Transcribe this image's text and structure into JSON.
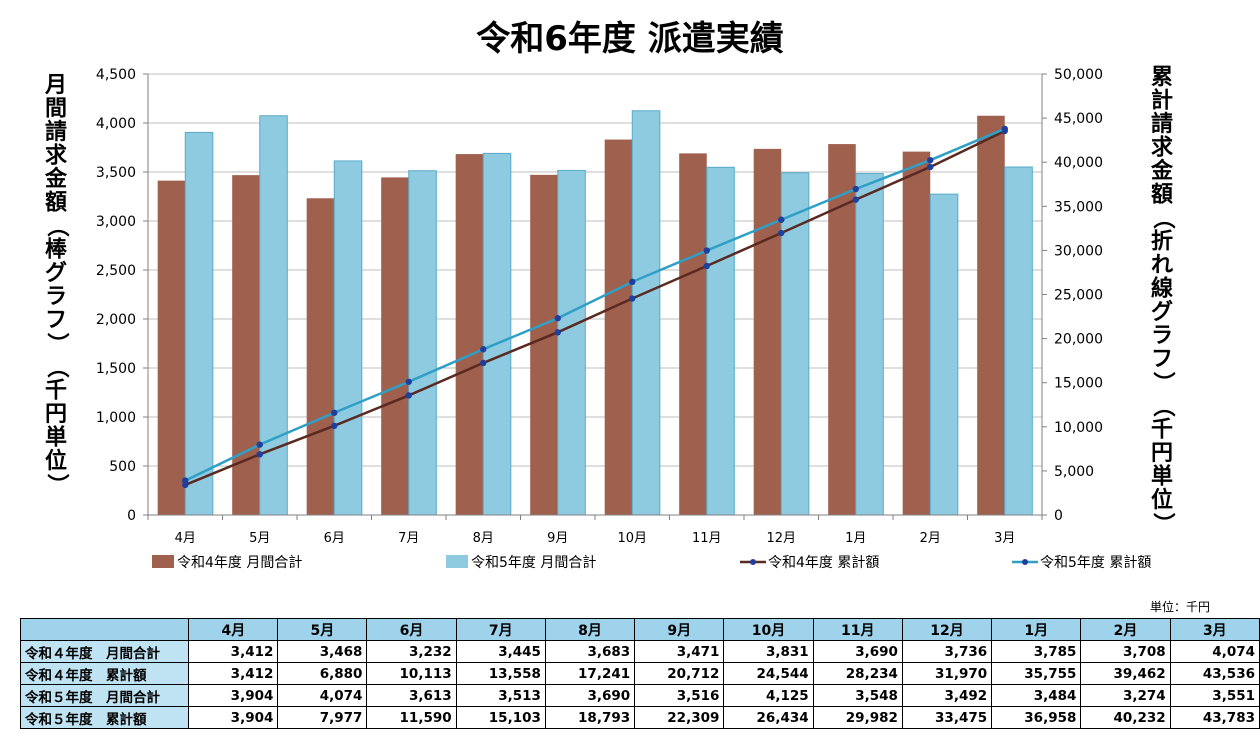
{
  "chart_data": {
    "type": "bar",
    "title": "令和6年度 派遣実績",
    "ylabel_left": "月間請求金額（棒グラフ）（千円単位）",
    "ylabel_right": "累計請求金額（折れ線グラフ）（千円単位）",
    "categories": [
      "4月",
      "5月",
      "6月",
      "7月",
      "8月",
      "9月",
      "10月",
      "11月",
      "12月",
      "1月",
      "2月",
      "3月"
    ],
    "ylim_left": [
      0,
      4500
    ],
    "ylim_right": [
      0,
      50000
    ],
    "left_ticks": [
      "0",
      "500",
      "1,000",
      "1,500",
      "2,000",
      "2,500",
      "3,000",
      "3,500",
      "4,000",
      "4,500"
    ],
    "right_ticks": [
      "0",
      "5,000",
      "10,000",
      "15,000",
      "20,000",
      "25,000",
      "30,000",
      "35,000",
      "40,000",
      "45,000",
      "50,000"
    ],
    "grid": true,
    "legend_position": "bottom",
    "series": [
      {
        "name": "令和4年度 月間合計",
        "type": "bar",
        "axis": "left",
        "color": "#a0604e",
        "values": [
          3412,
          3468,
          3232,
          3445,
          3683,
          3471,
          3831,
          3690,
          3736,
          3785,
          3708,
          4074
        ]
      },
      {
        "name": "令和5年度 月間合計",
        "type": "bar",
        "axis": "left",
        "color": "#8ecae0",
        "values": [
          3904,
          4074,
          3613,
          3513,
          3690,
          3516,
          4125,
          3548,
          3492,
          3484,
          3274,
          3551
        ]
      },
      {
        "name": "令和4年度 累計額",
        "type": "line",
        "axis": "right",
        "color": "#5a2a22",
        "values": [
          3412,
          6880,
          10113,
          13558,
          17241,
          20712,
          24544,
          28234,
          31970,
          35755,
          39462,
          43536
        ]
      },
      {
        "name": "令和5年度 累計額",
        "type": "line",
        "axis": "right",
        "color": "#2e9fc6",
        "values": [
          3904,
          7977,
          11590,
          15103,
          18793,
          22309,
          26434,
          29982,
          33475,
          36958,
          40232,
          43783
        ]
      }
    ]
  },
  "table": {
    "unit_note": "単位：千円",
    "headers": [
      "4月",
      "5月",
      "6月",
      "7月",
      "8月",
      "9月",
      "10月",
      "11月",
      "12月",
      "1月",
      "2月",
      "3月"
    ],
    "rows": [
      {
        "label": "令和４年度　月間合計",
        "values": [
          "3,412",
          "3,468",
          "3,232",
          "3,445",
          "3,683",
          "3,471",
          "3,831",
          "3,690",
          "3,736",
          "3,785",
          "3,708",
          "4,074"
        ]
      },
      {
        "label": "令和４年度　累計額",
        "values": [
          "3,412",
          "6,880",
          "10,113",
          "13,558",
          "17,241",
          "20,712",
          "24,544",
          "28,234",
          "31,970",
          "35,755",
          "39,462",
          "43,536"
        ]
      },
      {
        "label": "令和５年度　月間合計",
        "values": [
          "3,904",
          "4,074",
          "3,613",
          "3,513",
          "3,690",
          "3,516",
          "4,125",
          "3,548",
          "3,492",
          "3,484",
          "3,274",
          "3,551"
        ]
      },
      {
        "label": "令和５年度　累計額",
        "values": [
          "3,904",
          "7,977",
          "11,590",
          "15,103",
          "18,793",
          "22,309",
          "26,434",
          "29,982",
          "33,475",
          "36,958",
          "40,232",
          "43,783"
        ]
      }
    ]
  }
}
